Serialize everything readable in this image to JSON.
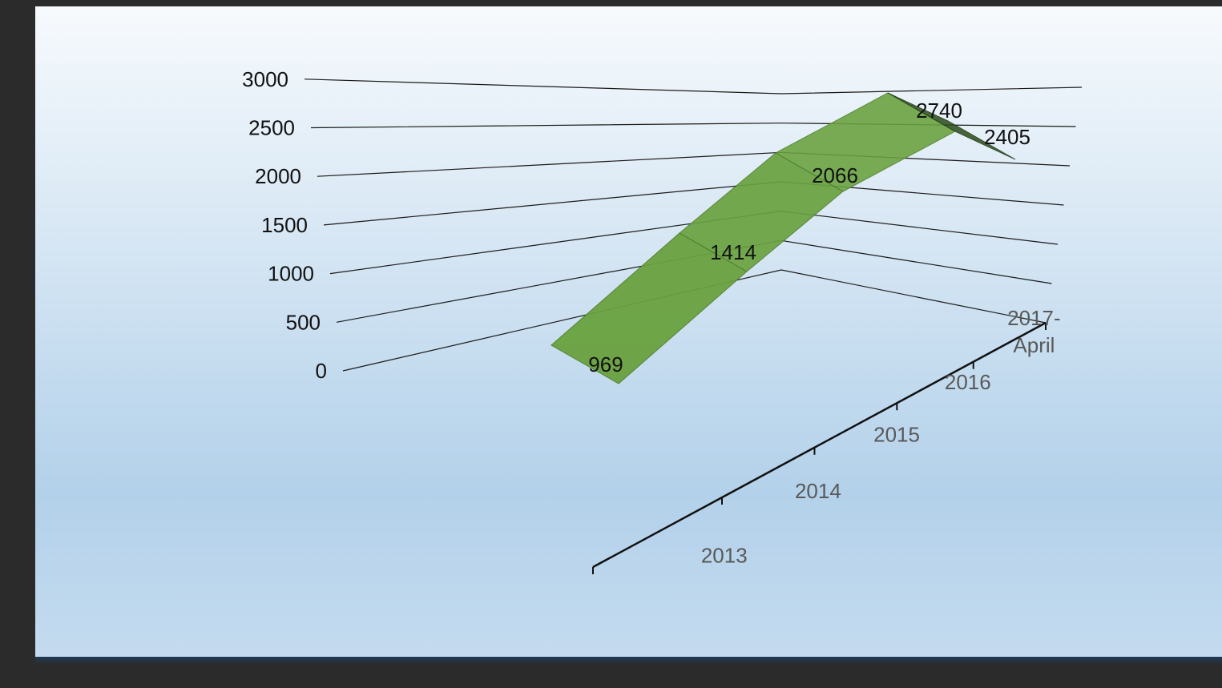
{
  "chart_data": {
    "type": "line",
    "style": "3d-ribbon",
    "title": "",
    "xlabel": "",
    "ylabel": "",
    "categories": [
      "2013",
      "2014",
      "2015",
      "2016",
      "2017-April"
    ],
    "series": [
      {
        "values": [
          969,
          1414,
          2066,
          2740,
          2405
        ]
      }
    ],
    "ylim": [
      0,
      3000
    ],
    "yticks": [
      "0",
      "500",
      "1000",
      "1500",
      "2000",
      "2500",
      "3000"
    ],
    "data_labels": [
      "969",
      "1414",
      "2066",
      "2740",
      "2405"
    ],
    "grid": true,
    "legend": "none",
    "colors": {
      "series": "#6aa23f",
      "series_dark": "#2d4d1c",
      "background_top": "#f7fafd",
      "background_bottom": "#b5d2ea",
      "frame": "#2b2b2b"
    }
  }
}
